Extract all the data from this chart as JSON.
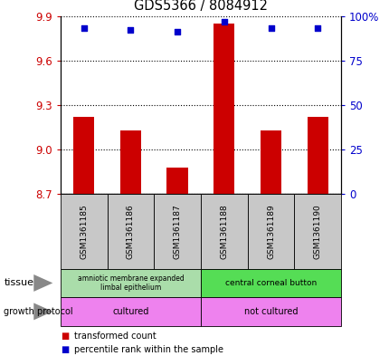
{
  "title": "GDS5366 / 8084912",
  "samples": [
    "GSM1361185",
    "GSM1361186",
    "GSM1361187",
    "GSM1361188",
    "GSM1361189",
    "GSM1361190"
  ],
  "bar_values": [
    9.22,
    9.13,
    8.88,
    9.85,
    9.13,
    9.22
  ],
  "percentile_values": [
    93,
    92,
    91,
    97,
    93,
    93
  ],
  "y_min": 8.7,
  "y_max": 9.9,
  "y_ticks": [
    8.7,
    9.0,
    9.3,
    9.6,
    9.9
  ],
  "right_y_ticks": [
    0,
    25,
    50,
    75,
    100
  ],
  "right_y_labels": [
    "0",
    "25",
    "50",
    "75",
    "100%"
  ],
  "bar_color": "#cc0000",
  "dot_color": "#0000cc",
  "tissue_labels_left": "amniotic membrane expanded\nlimbal epithelium",
  "tissue_labels_right": "central corneal button",
  "tissue_color_left": "#aaddaa",
  "tissue_color_right": "#55dd55",
  "growth_label_left": "cultured",
  "growth_label_right": "not cultured",
  "growth_color": "#ee82ee",
  "grid_color": "#000000",
  "sample_box_color": "#c8c8c8",
  "left_axis_color": "#cc0000",
  "right_axis_color": "#0000cc",
  "legend_bar_label": "transformed count",
  "legend_dot_label": "percentile rank within the sample",
  "tissue_arrow_color": "#888888",
  "growth_arrow_color": "#888888"
}
